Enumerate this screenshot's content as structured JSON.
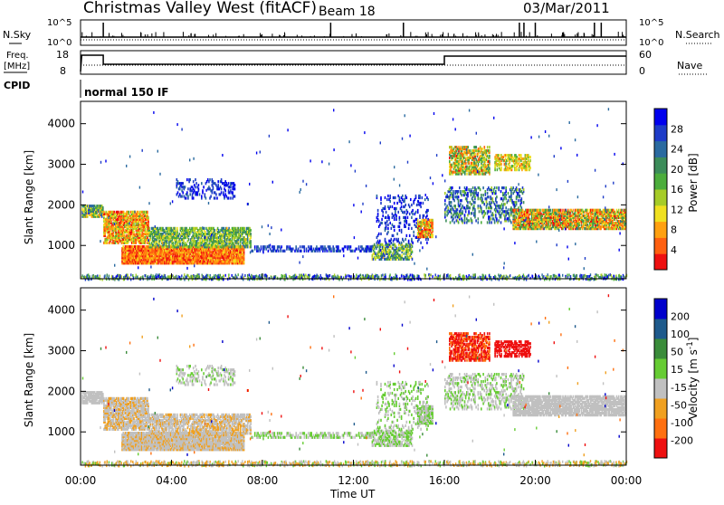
{
  "header": {
    "title": "Christmas Valley West (fitACF)",
    "beam": "Beam 18",
    "date": "03/Mar/2011"
  },
  "chart_data": [
    {
      "type": "line",
      "panel": "nsky-nsearch",
      "left_label": "N.Sky",
      "right_label": "N.Search",
      "left_ticks": [
        "10^5",
        "10^0"
      ],
      "right_ticks": [
        "10^5",
        "10^0"
      ],
      "xlim": [
        0,
        24
      ]
    },
    {
      "type": "line",
      "panel": "freq-nave",
      "left_label_line1": "Freq.",
      "left_label_line2": "[MHz]",
      "right_label": "Nave",
      "left_ticks": [
        "18",
        "8"
      ],
      "right_ticks": [
        "60",
        "0"
      ],
      "freq_steps": [
        {
          "x": 0.0,
          "y": 8
        },
        {
          "x": 0.05,
          "y": 17
        },
        {
          "x": 1.0,
          "y": 17
        },
        {
          "x": 1.0,
          "y": 12
        },
        {
          "x": 16.0,
          "y": 12
        },
        {
          "x": 16.0,
          "y": 16.5
        },
        {
          "x": 24.0,
          "y": 16.5
        }
      ],
      "ylim": [
        8,
        18
      ],
      "xlim": [
        0,
        24
      ]
    },
    {
      "type": "text",
      "panel": "cpid",
      "label": "CPID",
      "value": "normal 150 IF"
    },
    {
      "type": "heatmap",
      "panel": "power",
      "ylabel": "Slant Range [km]",
      "y_ticks": [
        "4000",
        "3000",
        "2000",
        "1000"
      ],
      "ylim": [
        180,
        4550
      ],
      "xlim": [
        0,
        24
      ],
      "colorbar_label": "Power [dB]",
      "colorbar_ticks": [
        "28",
        "24",
        "20",
        "16",
        "12",
        "8",
        "4"
      ],
      "colorbar_colors": [
        "#0000ee",
        "#1e3cc8",
        "#2a6aa0",
        "#3c8c5a",
        "#4cad3c",
        "#a6cc28",
        "#f0e020",
        "#ffa010",
        "#ff6010",
        "#ee1010"
      ]
    },
    {
      "type": "heatmap",
      "panel": "velocity",
      "ylabel": "Slant Range [km]",
      "y_ticks": [
        "4000",
        "3000",
        "2000",
        "1000"
      ],
      "ylim": [
        180,
        4550
      ],
      "xlim": [
        0,
        24
      ],
      "x_ticks": [
        "00:00",
        "04:00",
        "08:00",
        "12:00",
        "16:00",
        "20:00",
        "00:00"
      ],
      "xlabel": "Time UT",
      "colorbar_label": "Velocity [m s^-1]",
      "colorbar_ticks": [
        "200",
        "100",
        "50",
        "15",
        "-15",
        "-50",
        "-100",
        "-200"
      ],
      "colorbar_colors": [
        "#0000cc",
        "#1e5a8c",
        "#3a8c3a",
        "#66cc33",
        "#c0c0c0",
        "#f0a020",
        "#ff7010",
        "#ee1010"
      ]
    }
  ]
}
